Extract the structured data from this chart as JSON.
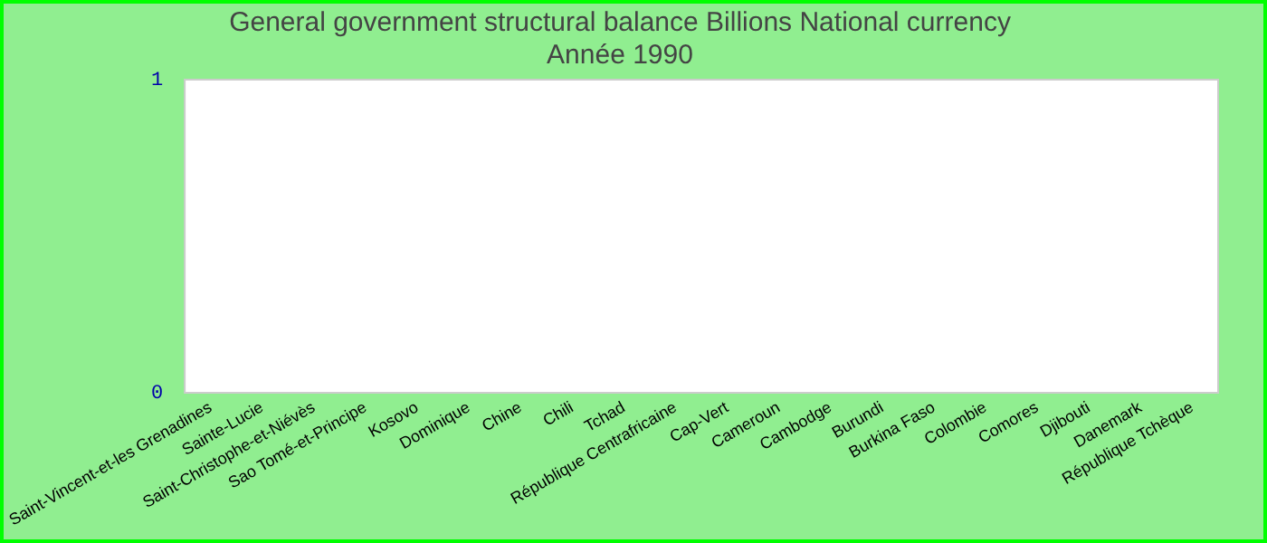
{
  "chart_data": {
    "type": "bar",
    "title": "General government structural balance Billions National currency",
    "subtitle": "Année 1990",
    "categories": [
      "Saint-Vincent-et-les Grenadines",
      "Sainte-Lucie",
      "Saint-Christophe-et-Niévès",
      "Sao Tomé-et-Principe",
      "Kosovo",
      "Dominique",
      "Chine",
      "Chili",
      "Tchad",
      "République Centrafricaine",
      "Cap-Vert",
      "Cameroun",
      "Cambodge",
      "Burundi",
      "Burkina Faso",
      "Colombie",
      "Comores",
      "Djibouti",
      "Danemark",
      "République Tchèque"
    ],
    "values": [
      0,
      0,
      0,
      0,
      0,
      0,
      0,
      0,
      0,
      0,
      0,
      0,
      0,
      0,
      0,
      0,
      0,
      0,
      0,
      0
    ],
    "ylim": [
      0,
      1
    ],
    "yticks": [
      0,
      1
    ],
    "grid": false,
    "legend": false
  }
}
